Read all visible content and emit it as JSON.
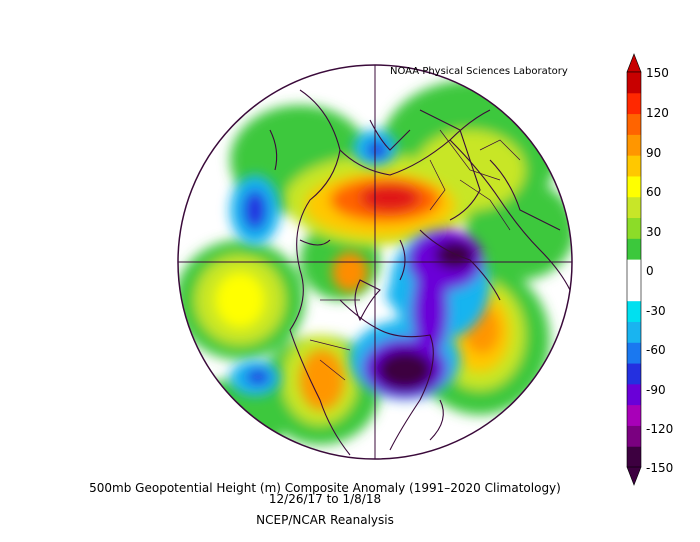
{
  "credit": "NOAA Physical Sciences Laboratory",
  "caption": {
    "title": "500mb Geopotential Height (m) Composite Anomaly (1991–2020 Climatology)",
    "dates": "12/26/17  to 1/8/18",
    "source": "NCEP/NCAR Reanalysis"
  },
  "colorbar": {
    "labels": [
      "150",
      "120",
      "90",
      "60",
      "30",
      "0",
      "-30",
      "-60",
      "-90",
      "-120",
      "-150"
    ],
    "colors": [
      "#3d0040",
      "#7a0080",
      "#a800b8",
      "#6a00d8",
      "#2430e0",
      "#1a78f0",
      "#19b4f0",
      "#00e0f0",
      "#ffffff",
      "#ffffff",
      "#3cc83c",
      "#8cdc28",
      "#c8e628",
      "#ffff00",
      "#ffc800",
      "#ff9600",
      "#ff6400",
      "#ff2800",
      "#c80000"
    ]
  },
  "anomaly_features": [
    {
      "name": "ridge-siberia",
      "value": 150,
      "color": "#e01818"
    },
    {
      "name": "trough-east-na",
      "value": -150,
      "color": "#5a0a5a"
    },
    {
      "name": "trough-east-siberia",
      "value": -120,
      "color": "#6a10c8"
    },
    {
      "name": "ridge-atlantic",
      "value": 90,
      "color": "#ffb000"
    },
    {
      "name": "ridge-pacific",
      "value": 90,
      "color": "#ffff00"
    },
    {
      "name": "ridge-west-na",
      "value": 90,
      "color": "#ff8c00"
    }
  ]
}
